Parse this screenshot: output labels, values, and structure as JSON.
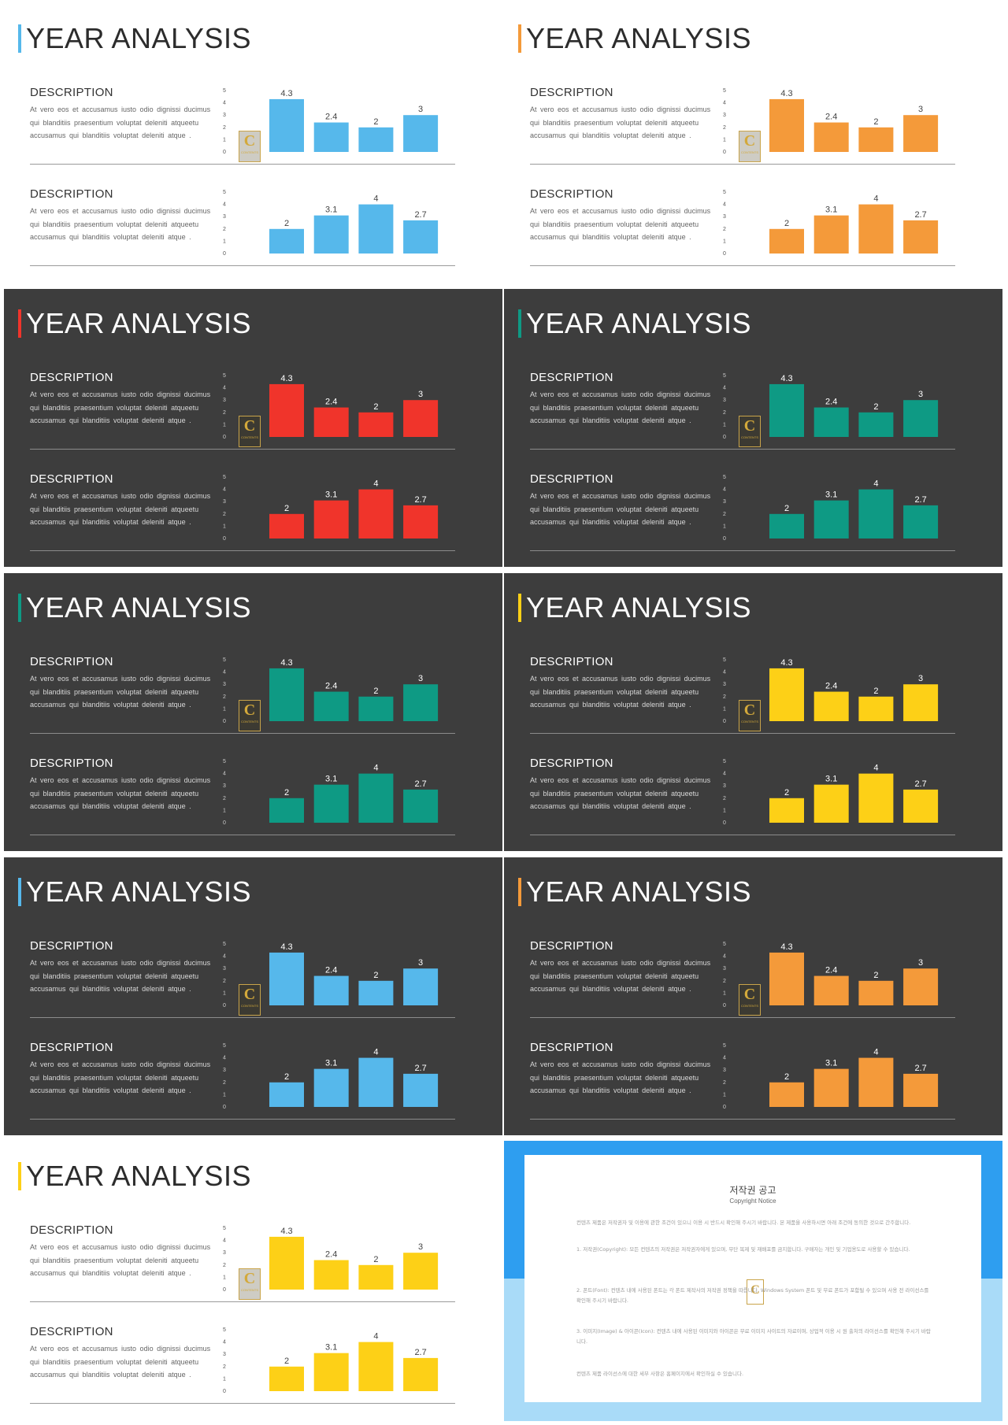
{
  "slide_title": "YEAR ANALYSIS",
  "desc_title": "DESCRIPTION",
  "desc_body": "At vero eos et accusamus iusto odio dignissi ducimus qui blanditiis praesentium voluptat deleniti atqueetu accusamus qui blanditiis voluptat deleniti atque .",
  "logo": {
    "letter": "C",
    "sub": "CONTENTS"
  },
  "slides": [
    {
      "theme": "light",
      "color": "#56b8eb"
    },
    {
      "theme": "light",
      "color": "#f49a3a"
    },
    {
      "theme": "dark",
      "color": "#f0342b"
    },
    {
      "theme": "dark",
      "color": "#0e9a84"
    },
    {
      "theme": "dark",
      "color": "#0e9a84"
    },
    {
      "theme": "dark",
      "color": "#fdd017"
    },
    {
      "theme": "dark",
      "color": "#56b8eb"
    },
    {
      "theme": "dark",
      "color": "#f49a3a"
    },
    {
      "theme": "light",
      "color": "#fdd017"
    }
  ],
  "chart_data": [
    {
      "type": "bar",
      "categories": [
        "",
        "",
        "",
        ""
      ],
      "values": [
        4.3,
        2.4,
        2,
        3
      ],
      "ylim": [
        0,
        5
      ],
      "yticks": [
        "0",
        "1",
        "2",
        "3",
        "4",
        "5"
      ],
      "data_labels": [
        "4.3",
        "2.4",
        "2",
        "3"
      ]
    },
    {
      "type": "bar",
      "categories": [
        "",
        "",
        "",
        ""
      ],
      "values": [
        2,
        3.1,
        4,
        2.7
      ],
      "ylim": [
        0,
        5
      ],
      "yticks": [
        "0",
        "1",
        "2",
        "3",
        "4",
        "5"
      ],
      "data_labels": [
        "2",
        "3.1",
        "4",
        "2.7"
      ]
    }
  ],
  "copyright": {
    "title": "저작권 공고",
    "subtitle": "Copyright Notice",
    "intro": "컨텐츠 제품은 저작권자 및 이용에 관한 조건이 있으니 이용 시 반드시 확인해 주시기 바랍니다. 본 제품을 사용하시면 아래 조건에 동의한 것으로 간주합니다.",
    "p1": "1. 저작권(Copyright): 모든 컨텐츠의 저작권은 저작권자에게 있으며, 무단 복제 및 재배포를 금지합니다. 구매자는 개인 및 기업용도로 사용할 수 있습니다.",
    "p2": "2. 폰트(Font): 컨텐츠 내에 사용된 폰트는 각 폰트 제작사의 저작권 정책을 따릅니다. Windows System 폰트 및 무료 폰트가 포함될 수 있으며 사용 전 라이선스를 확인해 주시기 바랍니다.",
    "p3": "3. 이미지(Image) & 아이콘(Icon): 컨텐츠 내에 사용된 이미지와 아이콘은 무료 이미지 사이트의 자료이며, 상업적 이용 시 원 출처의 라이선스를 확인해 주시기 바랍니다.",
    "outro": "컨텐츠 제품 라이선스에 대한 세부 사항은 홈페이지에서 확인하실 수 있습니다."
  }
}
